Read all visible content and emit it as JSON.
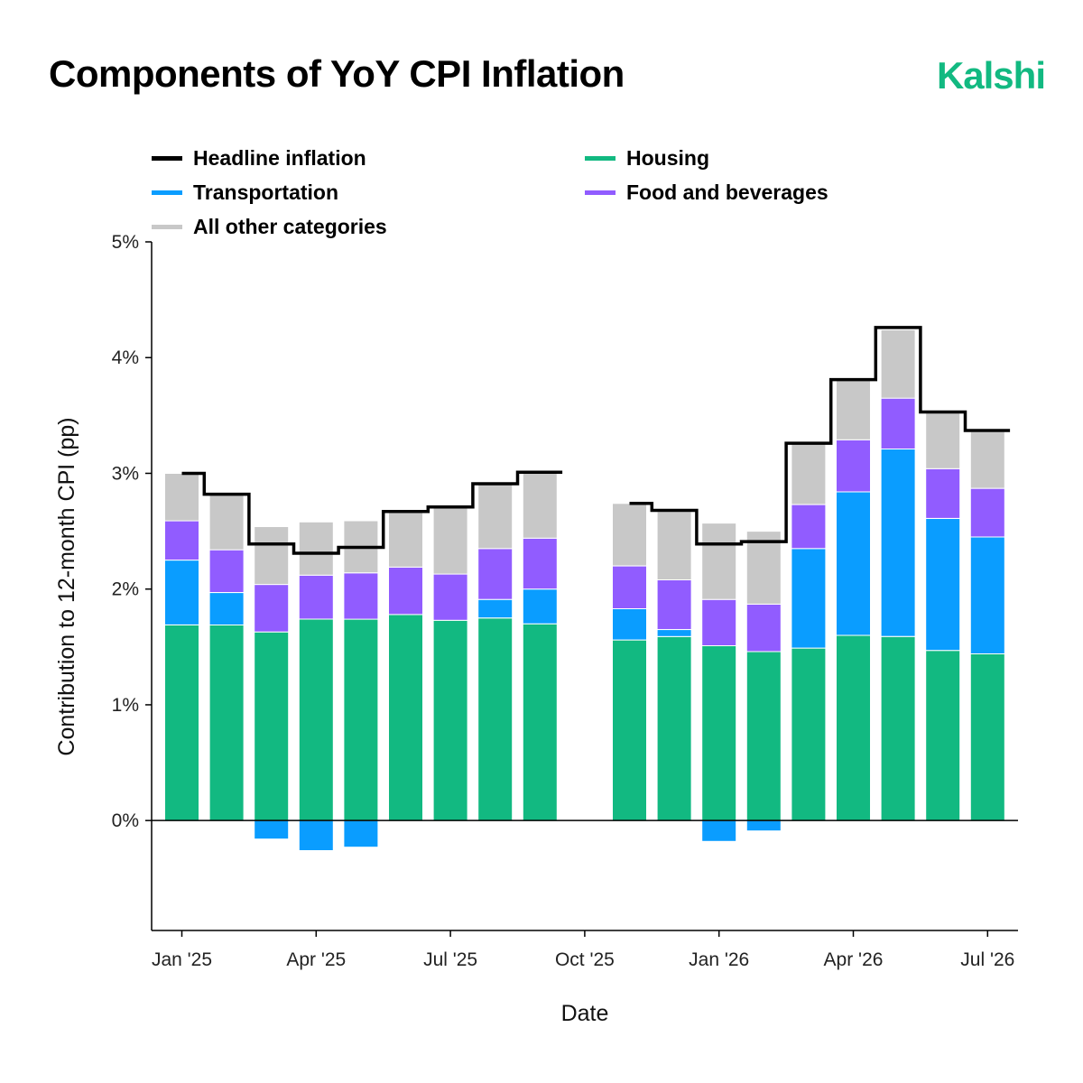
{
  "header": {
    "title": "Components of YoY CPI Inflation",
    "brand": "Kalshi"
  },
  "legend": [
    {
      "label": "Headline inflation",
      "color": "#000000"
    },
    {
      "label": "Housing",
      "color": "#12b981"
    },
    {
      "label": "Transportation",
      "color": "#0a9dff"
    },
    {
      "label": "Food and beverages",
      "color": "#915cff"
    },
    {
      "label": "All other categories",
      "color": "#c8c8c8"
    }
  ],
  "chart_data": {
    "type": "bar",
    "stacked": true,
    "xlabel": "Date",
    "ylabel": "Contribution to 12-month CPI (pp)",
    "ylim": [
      -0.95,
      5.0
    ],
    "yticks": [
      0,
      1,
      2,
      3,
      4,
      5
    ],
    "ytick_labels": [
      "0%",
      "1%",
      "2%",
      "3%",
      "4%",
      "5%"
    ],
    "xtick_labels": [
      "Jan '25",
      "Apr '25",
      "Jul '25",
      "Oct '25",
      "Jan '26",
      "Apr '26",
      "Jul '26"
    ],
    "categories": [
      "2025-01",
      "2025-02",
      "2025-03",
      "2025-04",
      "2025-05",
      "2025-06",
      "2025-07",
      "2025-08",
      "2025-09",
      "2025-10",
      "2025-11",
      "2025-12",
      "2026-01",
      "2026-02",
      "2026-03",
      "2026-04",
      "2026-05",
      "2026-06",
      "2026-07"
    ],
    "series": [
      {
        "name": "Housing",
        "color": "#12b981",
        "values": [
          1.69,
          1.69,
          1.63,
          1.74,
          1.74,
          1.78,
          1.73,
          1.75,
          1.7,
          null,
          1.56,
          1.59,
          1.51,
          1.46,
          1.49,
          1.6,
          1.59,
          1.47,
          1.44
        ]
      },
      {
        "name": "Transportation",
        "color": "#0a9dff",
        "values": [
          0.56,
          0.28,
          -0.16,
          -0.26,
          -0.23,
          0.0,
          0.0,
          0.16,
          0.3,
          null,
          0.27,
          0.06,
          -0.18,
          -0.09,
          0.86,
          1.24,
          1.62,
          1.14,
          1.01
        ]
      },
      {
        "name": "Food and beverages",
        "color": "#915cff",
        "values": [
          0.34,
          0.37,
          0.41,
          0.38,
          0.4,
          0.41,
          0.4,
          0.44,
          0.44,
          null,
          0.37,
          0.43,
          0.4,
          0.41,
          0.38,
          0.45,
          0.44,
          0.43,
          0.42
        ]
      },
      {
        "name": "All other categories",
        "color": "#c8c8c8",
        "values": [
          0.41,
          0.48,
          0.5,
          0.46,
          0.45,
          0.47,
          0.58,
          0.56,
          0.58,
          null,
          0.54,
          0.59,
          0.66,
          0.63,
          0.54,
          0.53,
          0.59,
          0.49,
          0.49
        ]
      }
    ],
    "headline": {
      "name": "Headline inflation",
      "color": "#000000",
      "values": [
        3.0,
        2.82,
        2.39,
        2.31,
        2.36,
        2.67,
        2.71,
        2.91,
        3.01,
        null,
        2.74,
        2.68,
        2.39,
        2.41,
        3.26,
        3.81,
        4.26,
        3.53,
        3.37
      ]
    }
  }
}
